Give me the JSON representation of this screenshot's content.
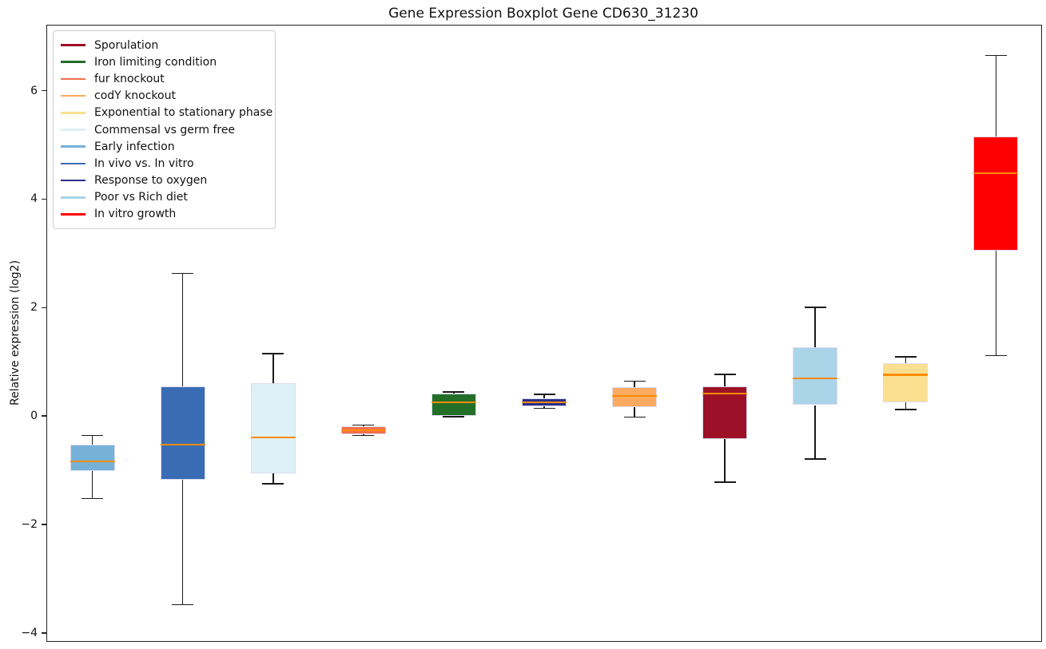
{
  "figure": {
    "title": "Gene Expression Boxplot Gene CD630_31230"
  },
  "y_axis": {
    "label": "Relative expression (log2)"
  },
  "chart_data": {
    "type": "boxplot",
    "title": "Gene Expression Boxplot Gene CD630_31230",
    "xlabel": "",
    "ylabel": "Relative expression (log2)",
    "ylim": [
      -4.15,
      7.2
    ],
    "yticks": [
      -4,
      -2,
      0,
      2,
      4,
      6
    ],
    "grid": false,
    "legend_position": "upper left",
    "style_colors": {
      "median": "#ff8c00",
      "whisker": "#1a1a1a",
      "box_edge": "#dcdcf0"
    },
    "legend": [
      {
        "label": "Sporulation",
        "color": "#9c1127"
      },
      {
        "label": "Iron limiting condition",
        "color": "#246f28"
      },
      {
        "label": "fur knockout",
        "color": "#f2714b"
      },
      {
        "label": "codY knockout",
        "color": "#fcaa60"
      },
      {
        "label": "Exponential to stationary phase",
        "color": "#fbdf90"
      },
      {
        "label": "Commensal vs germ free",
        "color": "#def0f8"
      },
      {
        "label": "Early infection",
        "color": "#76b1d8"
      },
      {
        "label": "In vivo vs. In vitro",
        "color": "#3a6cb4"
      },
      {
        "label": "Response to oxygen",
        "color": "#2a2e8c"
      },
      {
        "label": "Poor vs Rich diet",
        "color": "#aad4e8"
      },
      {
        "label": "In vitro growth",
        "color": "#ff0000"
      }
    ],
    "series": [
      {
        "name": "Early infection",
        "color": "#76b1d8",
        "whisker_low": -1.52,
        "q1": -1.02,
        "median": -0.84,
        "q3": -0.53,
        "whisker_high": -0.36
      },
      {
        "name": "In vivo vs. In vitro",
        "color": "#3a6cb4",
        "whisker_low": -3.48,
        "q1": -1.17,
        "median": -0.53,
        "q3": 0.54,
        "whisker_high": 2.63
      },
      {
        "name": "Commensal vs germ free",
        "color": "#def0f8",
        "whisker_low": -1.25,
        "q1": -1.06,
        "median": -0.4,
        "q3": 0.61,
        "whisker_high": 1.15
      },
      {
        "name": "fur knockout",
        "color": "#f2714b",
        "whisker_low": -0.36,
        "q1": -0.34,
        "median": -0.26,
        "q3": -0.19,
        "whisker_high": -0.17
      },
      {
        "name": "Iron limiting condition",
        "color": "#246f28",
        "whisker_low": -0.01,
        "q1": 0.0,
        "median": 0.25,
        "q3": 0.42,
        "whisker_high": 0.44
      },
      {
        "name": "Response to oxygen",
        "color": "#2a2e8c",
        "whisker_low": 0.14,
        "q1": 0.18,
        "median": 0.25,
        "q3": 0.33,
        "whisker_high": 0.4
      },
      {
        "name": "codY knockout",
        "color": "#fcaa60",
        "whisker_low": -0.02,
        "q1": 0.17,
        "median": 0.37,
        "q3": 0.53,
        "whisker_high": 0.64
      },
      {
        "name": "Sporulation",
        "color": "#9c1127",
        "whisker_low": -1.22,
        "q1": -0.43,
        "median": 0.41,
        "q3": 0.54,
        "whisker_high": 0.77
      },
      {
        "name": "Poor vs Rich diet",
        "color": "#aad4e8",
        "whisker_low": -0.79,
        "q1": 0.2,
        "median": 0.69,
        "q3": 1.27,
        "whisker_high": 2.0
      },
      {
        "name": "Exponential to stationary phase",
        "color": "#fbdf90",
        "whisker_low": 0.12,
        "q1": 0.25,
        "median": 0.76,
        "q3": 0.98,
        "whisker_high": 1.09
      },
      {
        "name": "In vitro growth",
        "color": "#ff0000",
        "whisker_low": 1.11,
        "q1": 3.05,
        "median": 4.48,
        "q3": 5.15,
        "whisker_high": 6.65
      }
    ]
  }
}
